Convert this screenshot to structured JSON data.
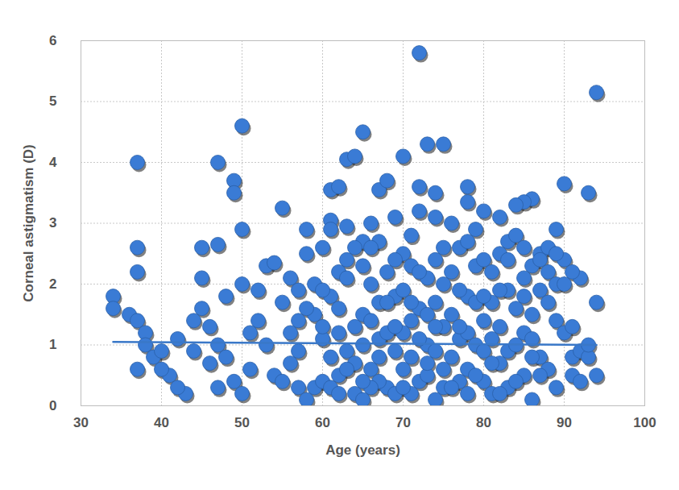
{
  "chart_data": {
    "type": "scatter",
    "xlabel": "Age (years)",
    "ylabel": "Corneal astigmatism (D)",
    "xlim": [
      30,
      100
    ],
    "xticks": [
      30,
      40,
      50,
      60,
      70,
      80,
      90,
      100
    ],
    "ylim": [
      0,
      6
    ],
    "yticks": [
      0,
      1,
      2,
      3,
      4,
      5,
      6
    ],
    "grid": true,
    "series": [
      {
        "type": "scatter",
        "marker": "circle",
        "color": "#3a7bd5",
        "x": [
          72,
          94,
          50,
          37,
          47,
          65,
          63,
          64,
          70,
          73,
          75,
          49,
          49,
          55,
          58,
          50,
          37,
          37,
          45,
          47,
          45,
          34,
          34,
          36,
          37,
          37,
          90,
          93,
          86,
          85,
          84,
          92,
          94,
          94,
          91,
          89,
          78,
          72,
          67,
          68,
          61,
          62,
          74,
          74,
          72,
          78,
          80,
          82,
          79,
          66,
          61,
          63,
          65,
          69,
          71,
          76,
          83,
          87,
          88,
          90,
          38,
          39,
          40,
          41,
          42,
          43,
          44,
          45,
          46,
          47,
          38,
          40,
          42,
          44,
          46,
          48,
          49,
          50,
          51,
          52,
          47,
          48,
          50,
          51,
          52,
          53,
          54,
          55,
          56,
          57,
          53,
          54,
          55,
          56,
          57,
          58,
          59,
          60,
          61,
          62,
          56,
          57,
          58,
          59,
          60,
          61,
          62,
          63,
          64,
          65,
          58,
          59,
          60,
          61,
          62,
          63,
          64,
          65,
          66,
          67,
          60,
          61,
          62,
          63,
          64,
          65,
          66,
          67,
          68,
          69,
          64,
          65,
          66,
          67,
          68,
          69,
          70,
          71,
          72,
          73,
          66,
          67,
          68,
          69,
          70,
          71,
          72,
          73,
          74,
          75,
          68,
          69,
          70,
          71,
          72,
          73,
          74,
          75,
          76,
          77,
          70,
          71,
          72,
          73,
          74,
          75,
          76,
          77,
          78,
          79,
          74,
          75,
          76,
          77,
          78,
          79,
          80,
          81,
          82,
          83,
          76,
          77,
          78,
          79,
          80,
          81,
          82,
          83,
          84,
          85,
          78,
          79,
          80,
          81,
          82,
          83,
          84,
          85,
          86,
          87,
          80,
          81,
          82,
          83,
          84,
          85,
          86,
          87,
          88,
          89,
          84,
          85,
          86,
          87,
          88,
          89,
          90,
          91,
          92,
          93,
          86,
          87,
          88,
          89,
          90,
          91,
          92,
          93,
          89,
          91,
          57,
          63,
          67,
          70,
          73,
          77,
          81,
          85,
          60,
          75,
          62,
          66,
          69,
          71,
          74,
          78,
          82,
          86,
          65,
          80
        ],
        "values": [
          5.8,
          5.15,
          4.6,
          4.0,
          4.0,
          4.5,
          4.05,
          4.1,
          4.1,
          4.3,
          4.3,
          3.7,
          3.5,
          3.25,
          2.9,
          2.9,
          2.6,
          2.2,
          2.6,
          2.65,
          2.1,
          1.8,
          1.6,
          1.5,
          1.4,
          0.6,
          3.65,
          3.5,
          3.4,
          3.35,
          3.3,
          2.1,
          1.7,
          0.5,
          0.8,
          2.9,
          3.6,
          3.6,
          3.55,
          3.7,
          3.55,
          3.6,
          3.5,
          3.1,
          3.2,
          3.35,
          3.2,
          3.1,
          2.9,
          3.0,
          3.05,
          2.95,
          2.7,
          3.1,
          2.8,
          3.0,
          2.7,
          2.5,
          2.6,
          2.4,
          1.2,
          0.8,
          0.9,
          0.5,
          1.1,
          0.2,
          1.4,
          1.6,
          0.7,
          1.0,
          1.0,
          0.6,
          0.3,
          0.9,
          1.3,
          1.8,
          0.4,
          2.0,
          1.2,
          1.9,
          0.3,
          0.8,
          0.2,
          0.6,
          1.4,
          2.3,
          0.5,
          1.7,
          2.1,
          0.3,
          1.0,
          2.35,
          0.4,
          1.2,
          1.9,
          0.1,
          1.5,
          2.6,
          0.8,
          2.2,
          0.7,
          1.4,
          2.5,
          0.3,
          1.1,
          1.8,
          0.5,
          2.4,
          0.2,
          1.5,
          1.6,
          2.0,
          0.4,
          2.9,
          1.2,
          0.9,
          2.6,
          0.1,
          2.0,
          1.1,
          1.9,
          0.3,
          1.6,
          2.1,
          1.3,
          2.3,
          0.6,
          2.7,
          0.3,
          1.8,
          0.7,
          1.0,
          1.4,
          0.4,
          2.2,
          0.9,
          2.5,
          0.2,
          1.6,
          2.1,
          2.6,
          1.7,
          1.2,
          2.4,
          0.6,
          1.4,
          0.4,
          1.0,
          2.4,
          0.3,
          1.7,
          0.2,
          1.9,
          2.3,
          1.1,
          0.5,
          1.7,
          2.0,
          0.8,
          2.6,
          1.2,
          0.8,
          2.2,
          1.5,
          0.9,
          1.3,
          2.2,
          0.4,
          1.8,
          1.0,
          0.1,
          2.6,
          1.5,
          1.1,
          0.6,
          2.3,
          0.4,
          1.7,
          2.5,
          0.9,
          0.3,
          1.9,
          2.7,
          0.5,
          1.4,
          2.2,
          0.7,
          1.9,
          2.8,
          0.5,
          1.2,
          1.7,
          2.4,
          0.2,
          1.3,
          2.4,
          1.0,
          2.1,
          1.5,
          0.8,
          0.9,
          1.1,
          1.9,
          0.3,
          1.6,
          1.2,
          2.3,
          1.9,
          0.6,
          1.4,
          0.4,
          2.6,
          0.1,
          2.4,
          1.7,
          2.0,
          1.2,
          1.3,
          0.9,
          0.8,
          1.1,
          0.5,
          2.2,
          0.3,
          2.0,
          0.5,
          0.4,
          1.0,
          2.5,
          2.2,
          0.9,
          0.6,
          0.8,
          0.3,
          0.7,
          1.3,
          0.7,
          1.8,
          1.3,
          0.6,
          0.2,
          0.3,
          1.3,
          1.7,
          1.3,
          0.2,
          0.2,
          0.8,
          0.4,
          1.8
        ]
      },
      {
        "type": "line",
        "line_style": "solid",
        "color": "#3a78c8",
        "x": [
          34,
          94
        ],
        "values": [
          1.05,
          1.0
        ]
      }
    ]
  }
}
